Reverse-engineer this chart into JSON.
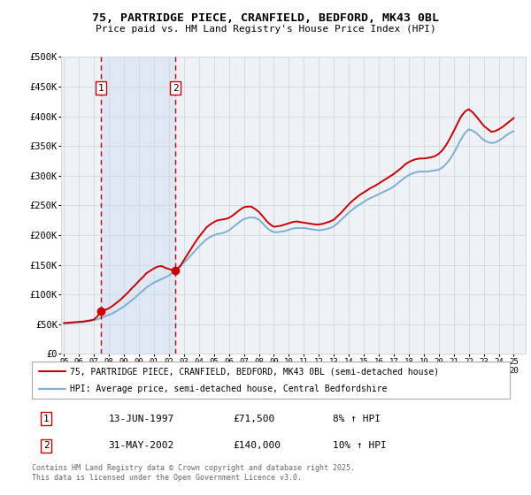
{
  "title": "75, PARTRIDGE PIECE, CRANFIELD, BEDFORD, MK43 0BL",
  "subtitle": "Price paid vs. HM Land Registry's House Price Index (HPI)",
  "ylim": [
    0,
    500000
  ],
  "xlim": [
    1994.8,
    2025.8
  ],
  "yticks": [
    0,
    50000,
    100000,
    150000,
    200000,
    250000,
    300000,
    350000,
    400000,
    450000,
    500000
  ],
  "ytick_labels": [
    "£0",
    "£50K",
    "£100K",
    "£150K",
    "£200K",
    "£250K",
    "£300K",
    "£350K",
    "£400K",
    "£450K",
    "£500K"
  ],
  "purchase1_x": 1997.45,
  "purchase1_y": 71500,
  "purchase2_x": 2002.42,
  "purchase2_y": 140000,
  "purchase1_label": "1",
  "purchase2_label": "2",
  "line_red_color": "#cc0000",
  "line_blue_color": "#7bafd4",
  "shaded_color": "#dde8f4",
  "vline_color": "#cc0000",
  "background_color": "#ffffff",
  "plot_bg_color": "#eef2f7",
  "grid_color": "#d0d8e0",
  "legend_line1": "75, PARTRIDGE PIECE, CRANFIELD, BEDFORD, MK43 0BL (semi-detached house)",
  "legend_line2": "HPI: Average price, semi-detached house, Central Bedfordshire",
  "table_row1": [
    "1",
    "13-JUN-1997",
    "£71,500",
    "8% ↑ HPI"
  ],
  "table_row2": [
    "2",
    "31-MAY-2002",
    "£140,000",
    "10% ↑ HPI"
  ],
  "copyright_text": "Contains HM Land Registry data © Crown copyright and database right 2025.\nThis data is licensed under the Open Government Licence v3.0.",
  "hpi_x": [
    1995.0,
    1995.25,
    1995.5,
    1995.75,
    1996.0,
    1996.25,
    1996.5,
    1996.75,
    1997.0,
    1997.25,
    1997.5,
    1997.75,
    1998.0,
    1998.25,
    1998.5,
    1998.75,
    1999.0,
    1999.25,
    1999.5,
    1999.75,
    2000.0,
    2000.25,
    2000.5,
    2000.75,
    2001.0,
    2001.25,
    2001.5,
    2001.75,
    2002.0,
    2002.25,
    2002.5,
    2002.75,
    2003.0,
    2003.25,
    2003.5,
    2003.75,
    2004.0,
    2004.25,
    2004.5,
    2004.75,
    2005.0,
    2005.25,
    2005.5,
    2005.75,
    2006.0,
    2006.25,
    2006.5,
    2006.75,
    2007.0,
    2007.25,
    2007.5,
    2007.75,
    2008.0,
    2008.25,
    2008.5,
    2008.75,
    2009.0,
    2009.25,
    2009.5,
    2009.75,
    2010.0,
    2010.25,
    2010.5,
    2010.75,
    2011.0,
    2011.25,
    2011.5,
    2011.75,
    2012.0,
    2012.25,
    2012.5,
    2012.75,
    2013.0,
    2013.25,
    2013.5,
    2013.75,
    2014.0,
    2014.25,
    2014.5,
    2014.75,
    2015.0,
    2015.25,
    2015.5,
    2015.75,
    2016.0,
    2016.25,
    2016.5,
    2016.75,
    2017.0,
    2017.25,
    2017.5,
    2017.75,
    2018.0,
    2018.25,
    2018.5,
    2018.75,
    2019.0,
    2019.25,
    2019.5,
    2019.75,
    2020.0,
    2020.25,
    2020.5,
    2020.75,
    2021.0,
    2021.25,
    2021.5,
    2021.75,
    2022.0,
    2022.25,
    2022.5,
    2022.75,
    2023.0,
    2023.25,
    2023.5,
    2023.75,
    2024.0,
    2024.25,
    2024.5,
    2024.75,
    2025.0
  ],
  "hpi_y": [
    51000,
    51500,
    52000,
    52500,
    53000,
    53500,
    54500,
    55500,
    57000,
    58500,
    61000,
    63500,
    66000,
    68500,
    72000,
    76000,
    80000,
    85000,
    90000,
    95000,
    101000,
    106000,
    112000,
    116000,
    120000,
    123000,
    126000,
    129000,
    132000,
    137000,
    142000,
    147000,
    154000,
    160000,
    167000,
    174000,
    181000,
    187000,
    193000,
    197000,
    200000,
    202000,
    203000,
    205000,
    208000,
    213000,
    218000,
    223000,
    227000,
    229000,
    230000,
    229000,
    226000,
    220000,
    213000,
    208000,
    205000,
    205000,
    206000,
    207000,
    209000,
    211000,
    212000,
    212000,
    212000,
    211000,
    210000,
    209000,
    208000,
    209000,
    210000,
    212000,
    215000,
    220000,
    226000,
    232000,
    238000,
    243000,
    248000,
    252000,
    256000,
    260000,
    263000,
    266000,
    269000,
    272000,
    275000,
    278000,
    282000,
    287000,
    292000,
    297000,
    301000,
    304000,
    306000,
    307000,
    307000,
    307000,
    308000,
    309000,
    310000,
    314000,
    320000,
    328000,
    338000,
    350000,
    362000,
    372000,
    378000,
    376000,
    372000,
    366000,
    360000,
    357000,
    355000,
    356000,
    359000,
    363000,
    368000,
    372000,
    375000
  ],
  "property_x": [
    1995.0,
    1995.25,
    1995.5,
    1995.75,
    1996.0,
    1996.25,
    1996.5,
    1996.75,
    1997.0,
    1997.25,
    1997.45,
    1997.75,
    1998.0,
    1998.25,
    1998.5,
    1998.75,
    1999.0,
    1999.25,
    1999.5,
    1999.75,
    2000.0,
    2000.25,
    2000.5,
    2000.75,
    2001.0,
    2001.25,
    2001.5,
    2001.75,
    2002.0,
    2002.25,
    2002.42,
    2002.75,
    2003.0,
    2003.25,
    2003.5,
    2003.75,
    2004.0,
    2004.25,
    2004.5,
    2004.75,
    2005.0,
    2005.25,
    2005.5,
    2005.75,
    2006.0,
    2006.25,
    2006.5,
    2006.75,
    2007.0,
    2007.25,
    2007.5,
    2007.75,
    2008.0,
    2008.25,
    2008.5,
    2008.75,
    2009.0,
    2009.25,
    2009.5,
    2009.75,
    2010.0,
    2010.25,
    2010.5,
    2010.75,
    2011.0,
    2011.25,
    2011.5,
    2011.75,
    2012.0,
    2012.25,
    2012.5,
    2012.75,
    2013.0,
    2013.25,
    2013.5,
    2013.75,
    2014.0,
    2014.25,
    2014.5,
    2014.75,
    2015.0,
    2015.25,
    2015.5,
    2015.75,
    2016.0,
    2016.25,
    2016.5,
    2016.75,
    2017.0,
    2017.25,
    2017.5,
    2017.75,
    2018.0,
    2018.25,
    2018.5,
    2018.75,
    2019.0,
    2019.25,
    2019.5,
    2019.75,
    2020.0,
    2020.25,
    2020.5,
    2020.75,
    2021.0,
    2021.25,
    2021.5,
    2021.75,
    2022.0,
    2022.25,
    2022.5,
    2022.75,
    2023.0,
    2023.25,
    2023.5,
    2023.75,
    2024.0,
    2024.25,
    2024.5,
    2024.75,
    2025.0
  ],
  "property_y": [
    52000,
    52500,
    53000,
    53500,
    54000,
    54500,
    55500,
    56500,
    58000,
    64000,
    71500,
    74000,
    77000,
    81000,
    86000,
    91000,
    97000,
    103000,
    110000,
    116000,
    123000,
    129000,
    136000,
    140000,
    144000,
    147000,
    148000,
    145000,
    143000,
    141000,
    140000,
    148000,
    158000,
    168000,
    178000,
    188000,
    197000,
    205000,
    213000,
    218000,
    222000,
    225000,
    226000,
    227000,
    229000,
    233000,
    238000,
    243000,
    247000,
    248000,
    248000,
    244000,
    239000,
    232000,
    224000,
    218000,
    214000,
    215000,
    216000,
    218000,
    220000,
    222000,
    223000,
    222000,
    221000,
    220000,
    219000,
    218000,
    218000,
    219000,
    221000,
    223000,
    226000,
    232000,
    238000,
    245000,
    252000,
    258000,
    263000,
    268000,
    272000,
    276000,
    280000,
    283000,
    287000,
    291000,
    295000,
    299000,
    303000,
    308000,
    313000,
    319000,
    323000,
    326000,
    328000,
    329000,
    329000,
    330000,
    331000,
    333000,
    337000,
    343000,
    352000,
    363000,
    375000,
    388000,
    400000,
    408000,
    412000,
    407000,
    400000,
    392000,
    384000,
    379000,
    374000,
    375000,
    378000,
    382000,
    387000,
    392000,
    397000
  ]
}
